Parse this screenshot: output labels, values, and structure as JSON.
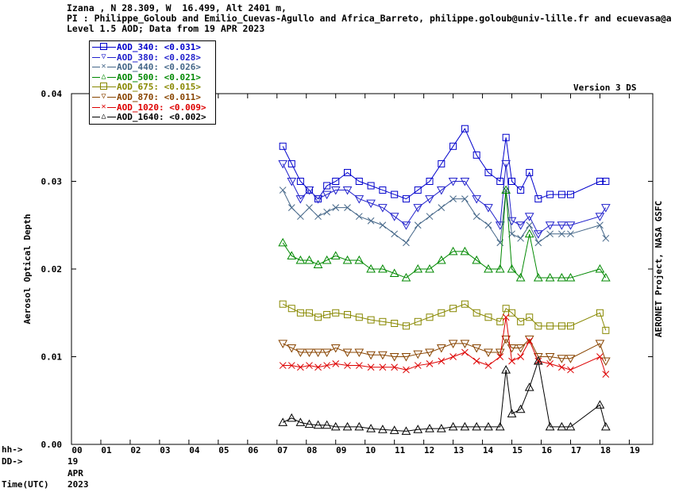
{
  "header": {
    "line1": "Izana , N 28.309, W  16.499, Alt 2401 m,",
    "line2": "PI : Philippe_Goloub and Emilio_Cuevas-Agullo and Africa_Barreto, philippe.goloub@univ-lille.fr and ecuevasa@a",
    "line3": "Level 1.5 AOD; Data from 19 APR 2023"
  },
  "version_label": "Version 3 DS",
  "right_label": "AERONET Project, NASA GSFC",
  "time_labels": {
    "hh": "hh->",
    "dd": "DD->",
    "time": "Time(UTC)"
  },
  "date_labels": {
    "day": "19",
    "month": "APR",
    "year": "2023"
  },
  "chart_data": {
    "type": "line",
    "ylabel": "Aerosol Optical Depth",
    "ylim": [
      0,
      0.04
    ],
    "xlim": [
      0,
      19.8
    ],
    "yticks": [
      "0.00",
      "0.01",
      "0.02",
      "0.03",
      "0.04"
    ],
    "xticks": [
      "00",
      "01",
      "02",
      "03",
      "04",
      "05",
      "06",
      "07",
      "08",
      "09",
      "10",
      "11",
      "12",
      "13",
      "14",
      "15",
      "16",
      "17",
      "18",
      "19"
    ],
    "x": [
      7.2,
      7.5,
      7.8,
      8.1,
      8.4,
      8.7,
      9.0,
      9.4,
      9.8,
      10.2,
      10.6,
      11.0,
      11.4,
      11.8,
      12.2,
      12.6,
      13.0,
      13.4,
      13.8,
      14.2,
      14.6,
      14.8,
      15.0,
      15.3,
      15.6,
      15.9,
      16.3,
      16.7,
      17.0,
      18.0,
      18.2
    ],
    "series": [
      {
        "name": "AOD_340: <0.031>",
        "color": "#0000cc",
        "marker": "square",
        "values": [
          0.034,
          0.032,
          0.03,
          0.029,
          0.028,
          0.0295,
          0.03,
          0.031,
          0.03,
          0.0295,
          0.029,
          0.0285,
          0.028,
          0.029,
          0.03,
          0.032,
          0.034,
          0.036,
          0.033,
          0.031,
          0.03,
          0.035,
          0.03,
          0.029,
          0.031,
          0.028,
          0.0285,
          0.0285,
          0.0285,
          0.03,
          0.03
        ]
      },
      {
        "name": "AOD_380: <0.028>",
        "color": "#2222cc",
        "marker": "tri-down",
        "values": [
          0.032,
          0.03,
          0.028,
          0.029,
          0.028,
          0.0285,
          0.029,
          0.029,
          0.028,
          0.0275,
          0.027,
          0.026,
          0.025,
          0.027,
          0.028,
          0.029,
          0.03,
          0.03,
          0.028,
          0.027,
          0.025,
          0.032,
          0.0255,
          0.025,
          0.026,
          0.024,
          0.025,
          0.025,
          0.025,
          0.026,
          0.027
        ]
      },
      {
        "name": "AOD_440: <0.026>",
        "color": "#446688",
        "marker": "x",
        "values": [
          0.029,
          0.027,
          0.026,
          0.027,
          0.026,
          0.0265,
          0.027,
          0.027,
          0.026,
          0.0255,
          0.025,
          0.024,
          0.023,
          0.025,
          0.026,
          0.027,
          0.028,
          0.028,
          0.026,
          0.025,
          0.023,
          0.029,
          0.024,
          0.0235,
          0.025,
          0.023,
          0.024,
          0.024,
          0.024,
          0.025,
          0.0235
        ]
      },
      {
        "name": "AOD_500: <0.021>",
        "color": "#008800",
        "marker": "tri-up",
        "values": [
          0.023,
          0.0215,
          0.021,
          0.021,
          0.0205,
          0.021,
          0.0215,
          0.021,
          0.021,
          0.02,
          0.02,
          0.0195,
          0.019,
          0.02,
          0.02,
          0.021,
          0.022,
          0.022,
          0.021,
          0.02,
          0.02,
          0.029,
          0.02,
          0.019,
          0.024,
          0.019,
          0.019,
          0.019,
          0.019,
          0.02,
          0.019
        ]
      },
      {
        "name": "AOD_675: <0.015>",
        "color": "#888800",
        "marker": "square",
        "values": [
          0.016,
          0.0155,
          0.015,
          0.015,
          0.0145,
          0.0148,
          0.015,
          0.0148,
          0.0145,
          0.0142,
          0.014,
          0.0138,
          0.0135,
          0.014,
          0.0145,
          0.015,
          0.0155,
          0.016,
          0.015,
          0.0145,
          0.014,
          0.0155,
          0.015,
          0.014,
          0.0145,
          0.0135,
          0.0135,
          0.0135,
          0.0135,
          0.015,
          0.013
        ]
      },
      {
        "name": "AOD_870: <0.011>",
        "color": "#884400",
        "marker": "tri-down",
        "values": [
          0.0115,
          0.011,
          0.0105,
          0.0105,
          0.0105,
          0.0105,
          0.011,
          0.0105,
          0.0105,
          0.0102,
          0.0102,
          0.01,
          0.01,
          0.0103,
          0.0105,
          0.011,
          0.0115,
          0.0115,
          0.011,
          0.0105,
          0.0105,
          0.012,
          0.011,
          0.011,
          0.012,
          0.01,
          0.01,
          0.0098,
          0.0098,
          0.0115,
          0.0095
        ]
      },
      {
        "name": "AOD_1020: <0.009>",
        "color": "#dd0000",
        "marker": "x",
        "values": [
          0.009,
          0.009,
          0.0088,
          0.009,
          0.0088,
          0.009,
          0.0092,
          0.009,
          0.009,
          0.0088,
          0.0088,
          0.0088,
          0.0085,
          0.009,
          0.0092,
          0.0095,
          0.01,
          0.0105,
          0.0095,
          0.009,
          0.01,
          0.0145,
          0.0095,
          0.01,
          0.0118,
          0.0095,
          0.0092,
          0.0088,
          0.0085,
          0.01,
          0.008
        ]
      },
      {
        "name": "AOD_1640: <0.002>",
        "color": "#000000",
        "marker": "tri-up",
        "values": [
          0.0025,
          0.003,
          0.0025,
          0.0023,
          0.0022,
          0.0022,
          0.002,
          0.002,
          0.002,
          0.0018,
          0.0017,
          0.0016,
          0.0015,
          0.0017,
          0.0018,
          0.0018,
          0.002,
          0.002,
          0.002,
          0.002,
          0.002,
          0.0085,
          0.0035,
          0.004,
          0.0065,
          0.0095,
          0.002,
          0.002,
          0.002,
          0.0045,
          0.002
        ]
      }
    ]
  }
}
